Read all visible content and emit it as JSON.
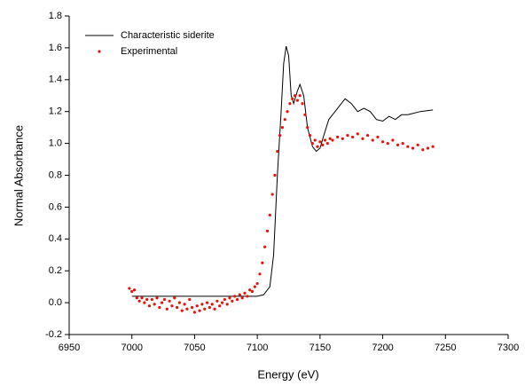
{
  "chart_data": {
    "type": "line",
    "xlabel": "Energy (eV)",
    "ylabel": "Normal Absorbance",
    "xlim": [
      6950,
      7300
    ],
    "xticks": [
      6950,
      7000,
      7050,
      7100,
      7150,
      7200,
      7250,
      7300
    ],
    "ylim": [
      -0.2,
      1.8
    ],
    "yticks": [
      -0.2,
      {
        "value": 0,
        "label": "0.0"
      },
      0.2,
      0.4,
      0.6,
      0.8,
      {
        "value": 1,
        "label": "1.0"
      },
      1.2,
      1.4,
      1.6,
      1.8
    ],
    "legend": "upper left",
    "series": [
      {
        "name": "Characteristic siderite",
        "type": "line",
        "color": "#000000",
        "x": [
          7000,
          7050,
          7100,
          7105,
          7110,
          7113,
          7116,
          7119,
          7121,
          7123,
          7125,
          7127,
          7129,
          7132,
          7134,
          7137,
          7140,
          7144,
          7147,
          7150,
          7153,
          7157,
          7162,
          7167,
          7170,
          7175,
          7180,
          7185,
          7190,
          7195,
          7200,
          7205,
          7210,
          7215,
          7220,
          7230,
          7240
        ],
        "values": [
          0.04,
          0.04,
          0.04,
          0.05,
          0.1,
          0.3,
          0.8,
          1.2,
          1.5,
          1.61,
          1.55,
          1.3,
          1.25,
          1.33,
          1.37,
          1.3,
          1.1,
          0.98,
          0.95,
          0.97,
          1.05,
          1.15,
          1.2,
          1.25,
          1.28,
          1.25,
          1.2,
          1.22,
          1.2,
          1.15,
          1.14,
          1.17,
          1.15,
          1.18,
          1.18,
          1.2,
          1.21
        ]
      },
      {
        "name": "Experimental",
        "type": "scatter",
        "color": "#e8120c",
        "x": [
          6998,
          7000,
          7002,
          7004,
          7006,
          7008,
          7010,
          7012,
          7014,
          7016,
          7018,
          7020,
          7022,
          7024,
          7026,
          7028,
          7030,
          7032,
          7034,
          7036,
          7038,
          7040,
          7042,
          7044,
          7046,
          7048,
          7050,
          7052,
          7054,
          7056,
          7058,
          7060,
          7062,
          7064,
          7066,
          7068,
          7070,
          7072,
          7074,
          7076,
          7078,
          7080,
          7082,
          7084,
          7086,
          7088,
          7090,
          7092,
          7094,
          7096,
          7098,
          7100,
          7102,
          7104,
          7106,
          7108,
          7110,
          7112,
          7114,
          7116,
          7118,
          7120,
          7122,
          7124,
          7126,
          7128,
          7130,
          7132,
          7134,
          7136,
          7138,
          7140,
          7142,
          7144,
          7146,
          7148,
          7150,
          7152,
          7154,
          7156,
          7158,
          7160,
          7164,
          7168,
          7172,
          7176,
          7180,
          7184,
          7188,
          7192,
          7196,
          7200,
          7204,
          7208,
          7212,
          7216,
          7220,
          7224,
          7228,
          7232,
          7236,
          7240
        ],
        "values": [
          0.09,
          0.07,
          0.08,
          0.03,
          0.01,
          0.03,
          0.0,
          0.02,
          -0.02,
          0.02,
          -0.01,
          0.03,
          -0.03,
          0.0,
          0.02,
          -0.04,
          0.01,
          -0.02,
          0.03,
          -0.03,
          0.0,
          -0.05,
          -0.01,
          -0.04,
          0.02,
          -0.03,
          -0.06,
          -0.02,
          -0.05,
          -0.01,
          -0.04,
          0.0,
          -0.03,
          -0.01,
          -0.04,
          0.01,
          -0.02,
          0.0,
          0.02,
          -0.01,
          0.03,
          0.01,
          0.04,
          0.02,
          0.05,
          0.03,
          0.06,
          0.04,
          0.08,
          0.07,
          0.1,
          0.12,
          0.18,
          0.25,
          0.35,
          0.45,
          0.55,
          0.68,
          0.8,
          0.95,
          1.05,
          1.1,
          1.15,
          1.2,
          1.25,
          1.28,
          1.3,
          1.27,
          1.3,
          1.25,
          1.18,
          1.1,
          1.05,
          1.0,
          1.02,
          0.98,
          1.01,
          0.99,
          1.02,
          1.0,
          1.03,
          1.02,
          1.04,
          1.03,
          1.05,
          1.04,
          1.06,
          1.03,
          1.05,
          1.02,
          1.04,
          1.01,
          1.0,
          1.02,
          0.99,
          1.0,
          0.98,
          0.97,
          0.99,
          0.96,
          0.97,
          0.98
        ]
      }
    ]
  }
}
